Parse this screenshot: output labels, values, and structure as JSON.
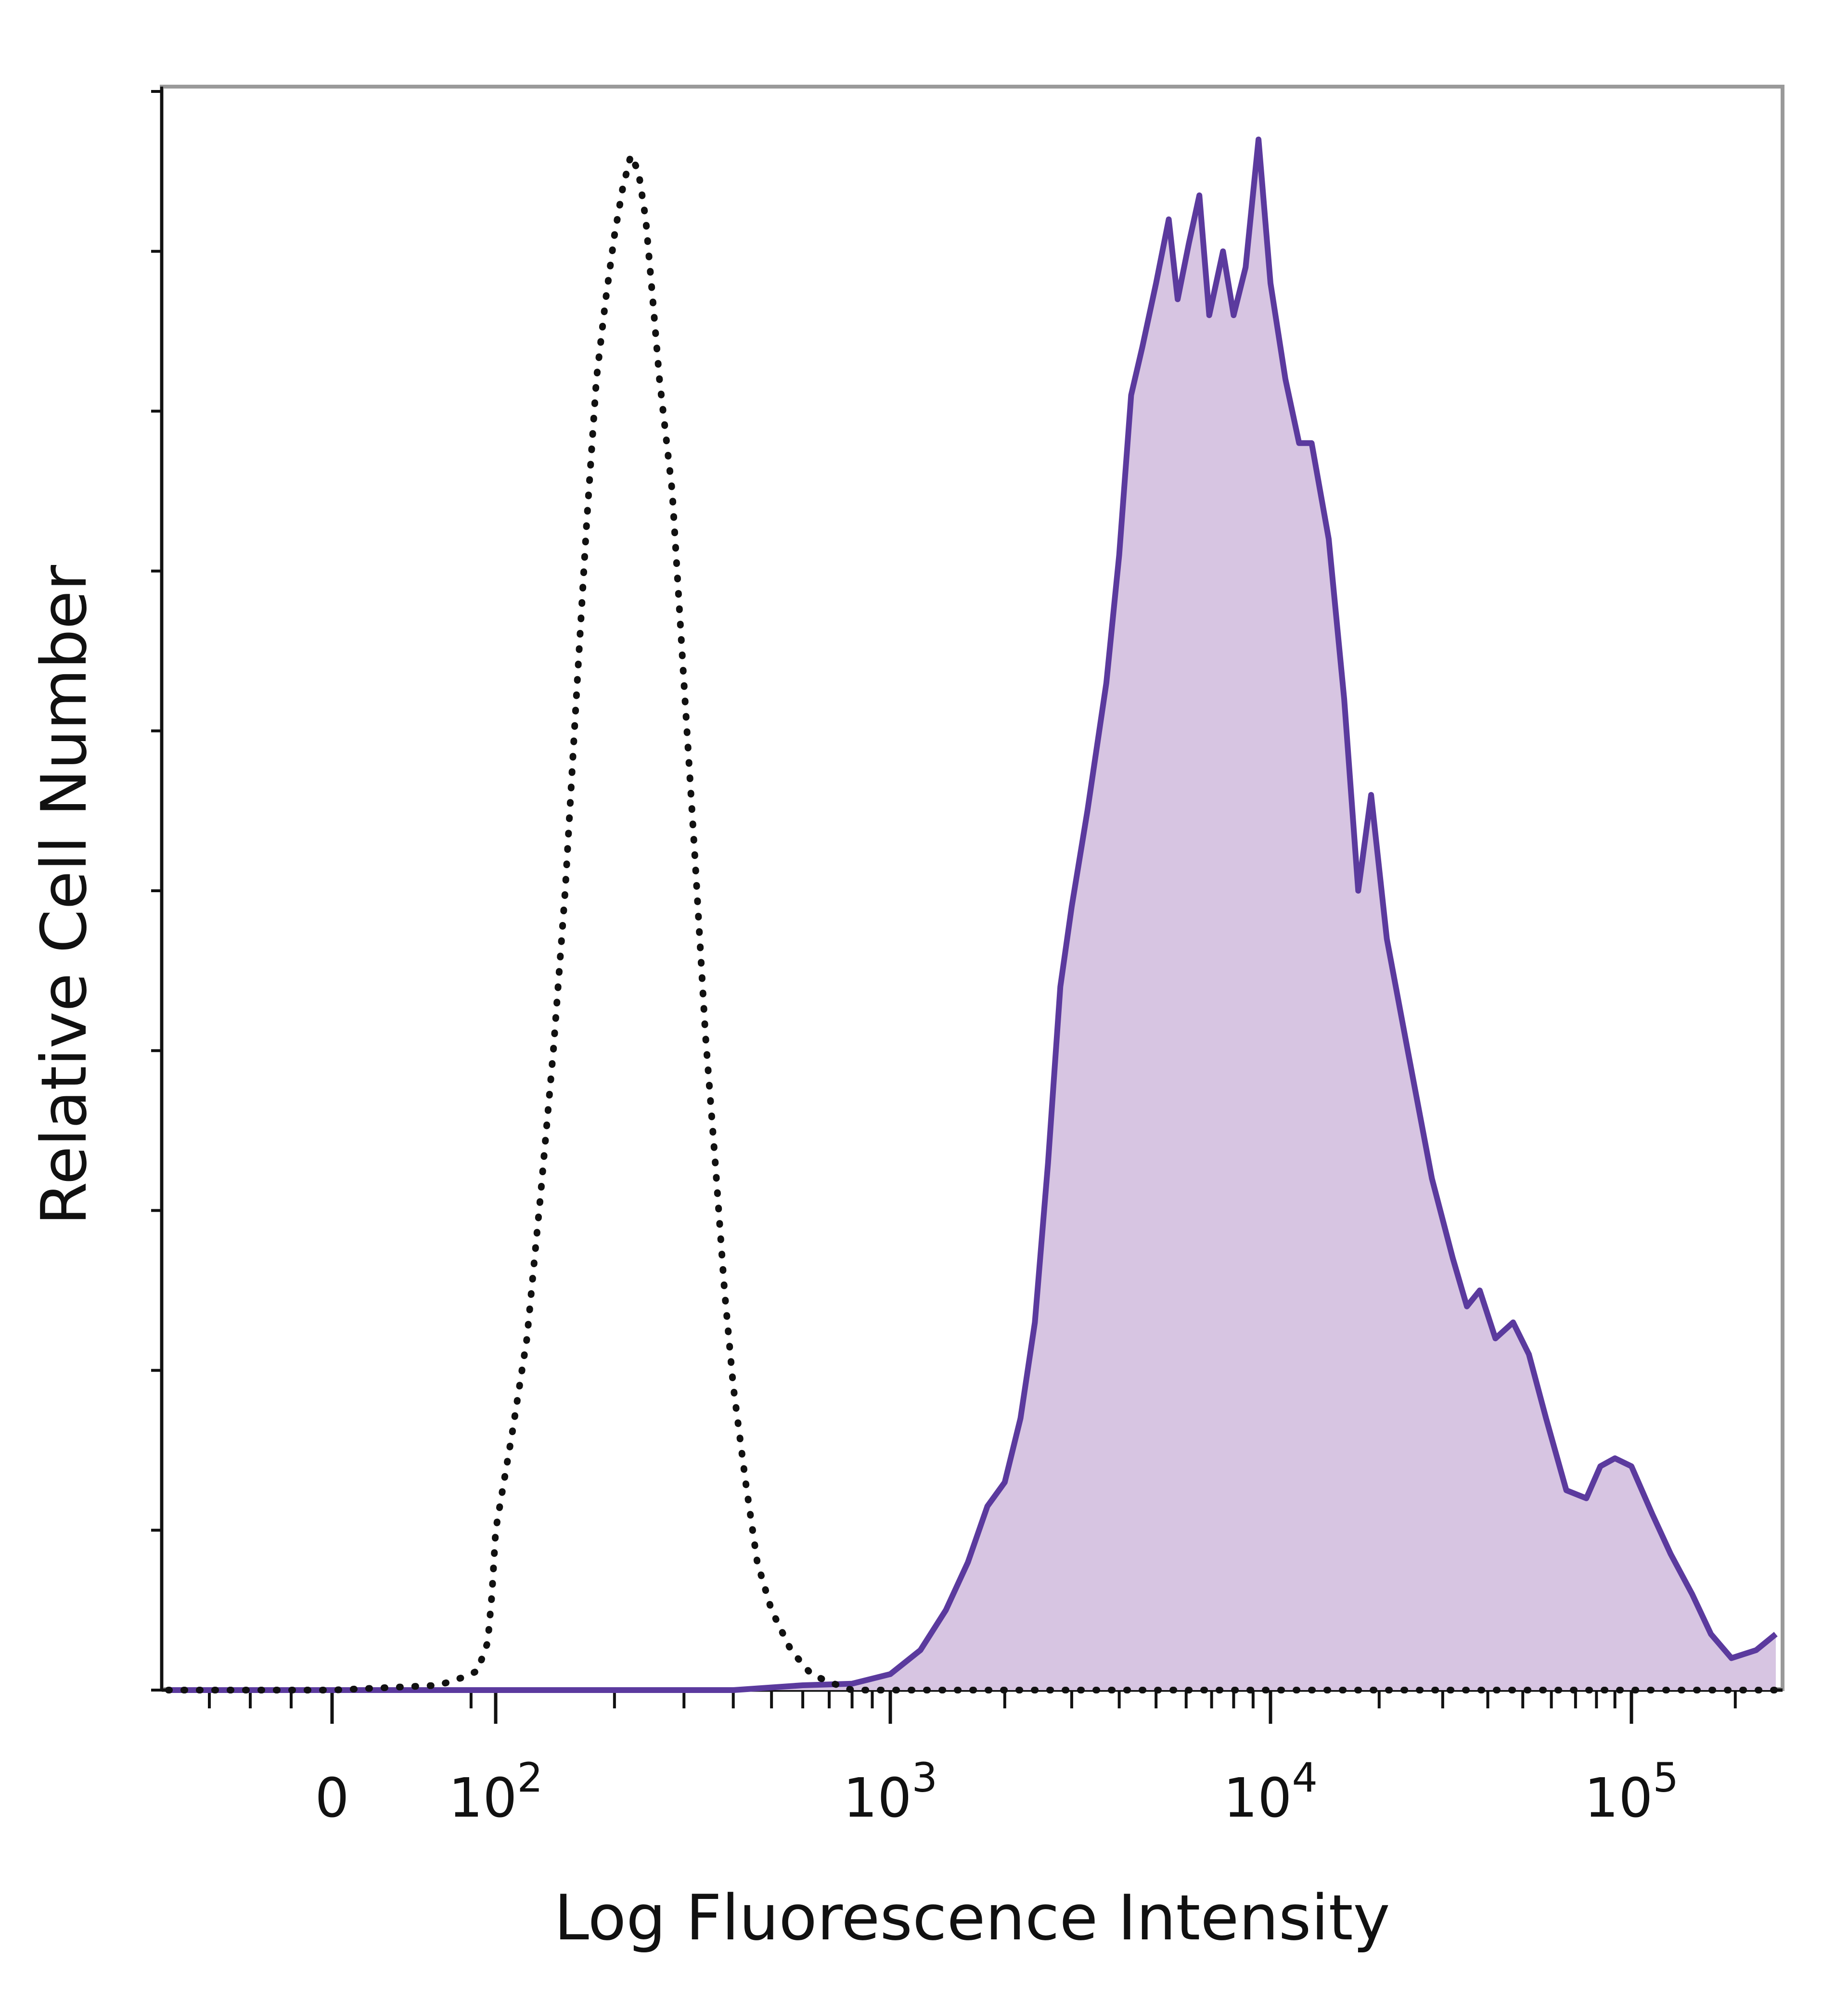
{
  "chart_data": {
    "type": "area",
    "xlabel": "Log Fluorescence Intensity",
    "ylabel": "Relative Cell Number",
    "x_scale": "biexponential",
    "x_tick_labels": [
      {
        "value": 0,
        "base": "0",
        "exp": ""
      },
      {
        "value": 100,
        "base": "10",
        "exp": "2"
      },
      {
        "value": 1000,
        "base": "10",
        "exp": "3"
      },
      {
        "value": 10000,
        "base": "10",
        "exp": "4"
      },
      {
        "value": 100000,
        "base": "10",
        "exp": "5"
      }
    ],
    "x_range": [
      -200,
      262144
    ],
    "y_range": [
      0,
      100
    ],
    "colors": {
      "stained": "#5b3a9e",
      "stained_fill": "#d7c5e2",
      "control": "#111111",
      "frame": "#9a9a9a"
    },
    "series": [
      {
        "style": "dotted",
        "points": [
          [
            -200,
            0
          ],
          [
            -100,
            0
          ],
          [
            0,
            0
          ],
          [
            20,
            0.3
          ],
          [
            40,
            0.8
          ],
          [
            60,
            1.2
          ],
          [
            80,
            3
          ],
          [
            90,
            6
          ],
          [
            100,
            10
          ],
          [
            110,
            16
          ],
          [
            120,
            22
          ],
          [
            130,
            31
          ],
          [
            140,
            40
          ],
          [
            150,
            50
          ],
          [
            160,
            62
          ],
          [
            170,
            73
          ],
          [
            180,
            82
          ],
          [
            190,
            87
          ],
          [
            200,
            91
          ],
          [
            210,
            94
          ],
          [
            220,
            96
          ],
          [
            230,
            95
          ],
          [
            240,
            92
          ],
          [
            250,
            87
          ],
          [
            260,
            82
          ],
          [
            280,
            75
          ],
          [
            300,
            63
          ],
          [
            320,
            52
          ],
          [
            340,
            41
          ],
          [
            360,
            33
          ],
          [
            380,
            25
          ],
          [
            400,
            19
          ],
          [
            430,
            13
          ],
          [
            460,
            8
          ],
          [
            500,
            5
          ],
          [
            560,
            2.5
          ],
          [
            630,
            1
          ],
          [
            700,
            0.5
          ],
          [
            800,
            0
          ],
          [
            1000,
            0
          ],
          [
            3000,
            0
          ],
          [
            10000,
            0
          ],
          [
            100000,
            0
          ],
          [
            262144,
            0
          ]
        ]
      },
      {
        "style": "solid-filled",
        "points": [
          [
            -200,
            0
          ],
          [
            100,
            0
          ],
          [
            200,
            0
          ],
          [
            400,
            0
          ],
          [
            600,
            0.3
          ],
          [
            800,
            0.4
          ],
          [
            1000,
            1
          ],
          [
            1200,
            2.5
          ],
          [
            1400,
            5
          ],
          [
            1600,
            8
          ],
          [
            1800,
            11.5
          ],
          [
            2000,
            13
          ],
          [
            2200,
            17
          ],
          [
            2400,
            23
          ],
          [
            2600,
            33
          ],
          [
            2800,
            44
          ],
          [
            3000,
            49
          ],
          [
            3300,
            55
          ],
          [
            3700,
            63
          ],
          [
            4000,
            71
          ],
          [
            4300,
            81
          ],
          [
            4600,
            84
          ],
          [
            5000,
            88
          ],
          [
            5400,
            92
          ],
          [
            5700,
            87
          ],
          [
            6100,
            90.5
          ],
          [
            6500,
            93.5
          ],
          [
            6900,
            86
          ],
          [
            7500,
            90
          ],
          [
            8000,
            86
          ],
          [
            8600,
            89
          ],
          [
            9300,
            97
          ],
          [
            10000,
            88
          ],
          [
            11000,
            82
          ],
          [
            12000,
            78
          ],
          [
            13000,
            78
          ],
          [
            14500,
            72
          ],
          [
            16000,
            62
          ],
          [
            17500,
            50
          ],
          [
            19000,
            56
          ],
          [
            21000,
            47
          ],
          [
            24000,
            40
          ],
          [
            28000,
            32
          ],
          [
            32000,
            27
          ],
          [
            35000,
            24
          ],
          [
            38000,
            25
          ],
          [
            42000,
            22
          ],
          [
            47000,
            23
          ],
          [
            52000,
            21
          ],
          [
            58000,
            17
          ],
          [
            66000,
            12.5
          ],
          [
            75000,
            12
          ],
          [
            82000,
            14
          ],
          [
            90000,
            14.5
          ],
          [
            100000,
            14
          ],
          [
            115000,
            11
          ],
          [
            130000,
            8.5
          ],
          [
            150000,
            6
          ],
          [
            170000,
            3.5
          ],
          [
            195000,
            2
          ],
          [
            230000,
            2.5
          ],
          [
            262144,
            3.5
          ]
        ]
      }
    ]
  }
}
